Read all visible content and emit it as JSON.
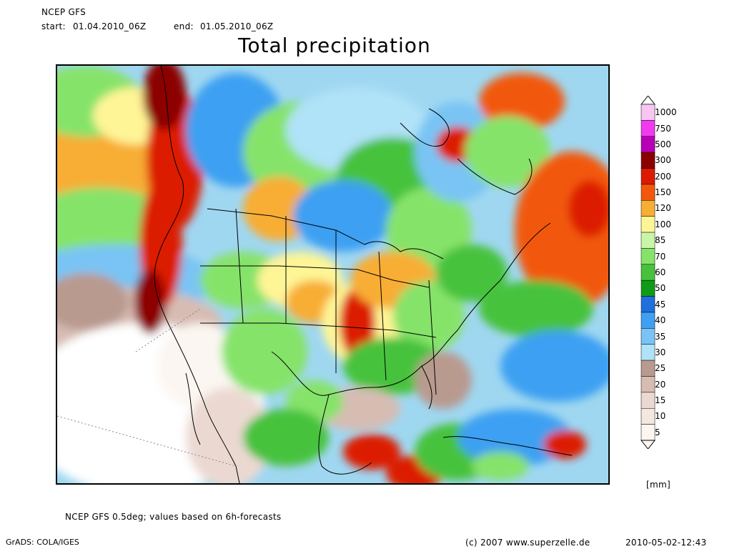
{
  "header": {
    "model": "NCEP GFS",
    "start_label": "start:",
    "start_value": "01.04.2010_06Z",
    "end_label": "end:",
    "end_value": "01.05.2010_06Z"
  },
  "title": "Total precipitation",
  "legend": {
    "unit": "[mm]",
    "levels": [
      {
        "label": "1000",
        "color": "#f8c6f0"
      },
      {
        "label": "750",
        "color": "#f23bf0"
      },
      {
        "label": "500",
        "color": "#b800b5"
      },
      {
        "label": "300",
        "color": "#8c0000"
      },
      {
        "label": "200",
        "color": "#dc1a00"
      },
      {
        "label": "150",
        "color": "#f2580c"
      },
      {
        "label": "120",
        "color": "#f8ad34"
      },
      {
        "label": "100",
        "color": "#fef596"
      },
      {
        "label": "85",
        "color": "#c9f5a8"
      },
      {
        "label": "70",
        "color": "#86e36a"
      },
      {
        "label": "60",
        "color": "#46c23c"
      },
      {
        "label": "50",
        "color": "#0f9a18"
      },
      {
        "label": "45",
        "color": "#1f6fdc"
      },
      {
        "label": "40",
        "color": "#3ea0f2"
      },
      {
        "label": "35",
        "color": "#79c4f4"
      },
      {
        "label": "30",
        "color": "#b0e2f8"
      },
      {
        "label": "25",
        "color": "#b99a8f"
      },
      {
        "label": "20",
        "color": "#d7bcb2"
      },
      {
        "label": "15",
        "color": "#ebd9d1"
      },
      {
        "label": "10",
        "color": "#f3e8e0"
      },
      {
        "label": "5",
        "color": "#fbf6f1"
      }
    ]
  },
  "footer": {
    "note": "NCEP GFS 0.5deg; values based on 6h-forecasts",
    "software": "GrADS: COLA/IGES",
    "copyright": "(c) 2007 www.superzelle.de",
    "timestamp": "2010-05-02-12:43"
  }
}
